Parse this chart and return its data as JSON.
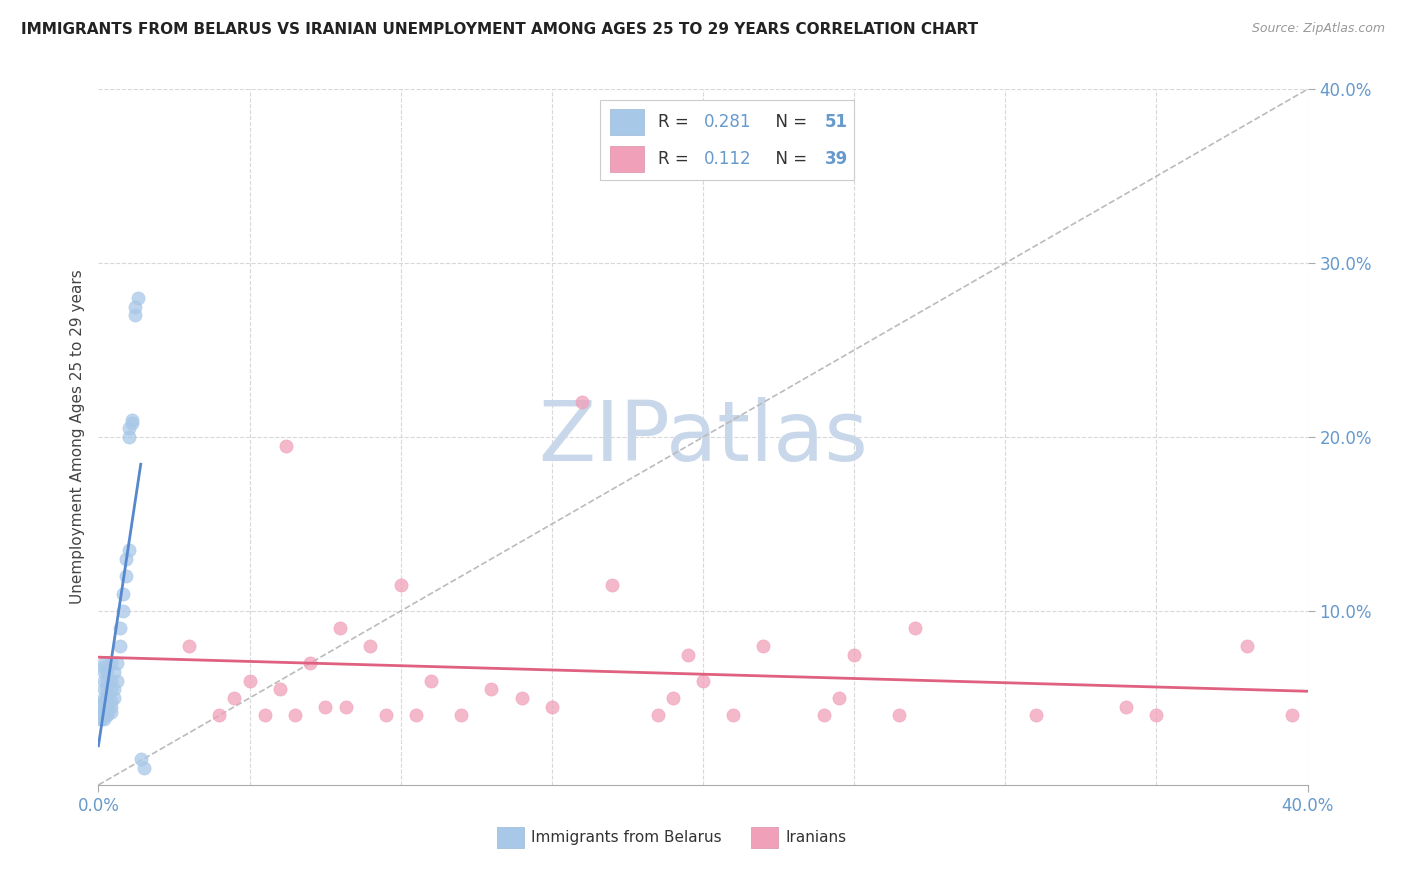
{
  "title": "IMMIGRANTS FROM BELARUS VS IRANIAN UNEMPLOYMENT AMONG AGES 25 TO 29 YEARS CORRELATION CHART",
  "source": "Source: ZipAtlas.com",
  "ylabel": "Unemployment Among Ages 25 to 29 years",
  "xlim": [
    0.0,
    0.4
  ],
  "ylim": [
    0.0,
    0.4
  ],
  "blue_color": "#a8c8e8",
  "pink_color": "#f0a0b8",
  "line_blue": "#5588cc",
  "line_pink": "#e06080",
  "grid_color": "#d8d8d8",
  "axis_label_color": "#6699cc",
  "watermark_color": "#c8d8ea",
  "belarus_x": [
    0.001,
    0.001,
    0.001,
    0.001,
    0.001,
    0.002,
    0.002,
    0.002,
    0.002,
    0.002,
    0.002,
    0.002,
    0.002,
    0.002,
    0.002,
    0.002,
    0.003,
    0.003,
    0.003,
    0.003,
    0.003,
    0.003,
    0.003,
    0.003,
    0.004,
    0.004,
    0.004,
    0.004,
    0.004,
    0.004,
    0.005,
    0.005,
    0.005,
    0.006,
    0.006,
    0.007,
    0.007,
    0.008,
    0.008,
    0.009,
    0.009,
    0.01,
    0.01,
    0.01,
    0.011,
    0.011,
    0.012,
    0.012,
    0.013,
    0.014,
    0.015
  ],
  "belarus_y": [
    0.038,
    0.038,
    0.04,
    0.042,
    0.045,
    0.038,
    0.04,
    0.042,
    0.045,
    0.048,
    0.05,
    0.055,
    0.06,
    0.065,
    0.068,
    0.07,
    0.04,
    0.042,
    0.045,
    0.048,
    0.05,
    0.055,
    0.06,
    0.065,
    0.042,
    0.045,
    0.048,
    0.055,
    0.06,
    0.07,
    0.05,
    0.055,
    0.065,
    0.06,
    0.07,
    0.08,
    0.09,
    0.1,
    0.11,
    0.12,
    0.13,
    0.135,
    0.2,
    0.205,
    0.208,
    0.21,
    0.27,
    0.275,
    0.28,
    0.015,
    0.01
  ],
  "iranian_x": [
    0.03,
    0.04,
    0.045,
    0.05,
    0.055,
    0.06,
    0.062,
    0.065,
    0.07,
    0.075,
    0.08,
    0.082,
    0.09,
    0.095,
    0.1,
    0.105,
    0.11,
    0.12,
    0.13,
    0.14,
    0.15,
    0.16,
    0.17,
    0.185,
    0.19,
    0.195,
    0.2,
    0.21,
    0.22,
    0.24,
    0.245,
    0.25,
    0.265,
    0.27,
    0.31,
    0.34,
    0.35,
    0.38,
    0.395
  ],
  "iranian_y": [
    0.08,
    0.04,
    0.05,
    0.06,
    0.04,
    0.055,
    0.195,
    0.04,
    0.07,
    0.045,
    0.09,
    0.045,
    0.08,
    0.04,
    0.115,
    0.04,
    0.06,
    0.04,
    0.055,
    0.05,
    0.045,
    0.22,
    0.115,
    0.04,
    0.05,
    0.075,
    0.06,
    0.04,
    0.08,
    0.04,
    0.05,
    0.075,
    0.04,
    0.09,
    0.04,
    0.045,
    0.04,
    0.08,
    0.04
  ]
}
